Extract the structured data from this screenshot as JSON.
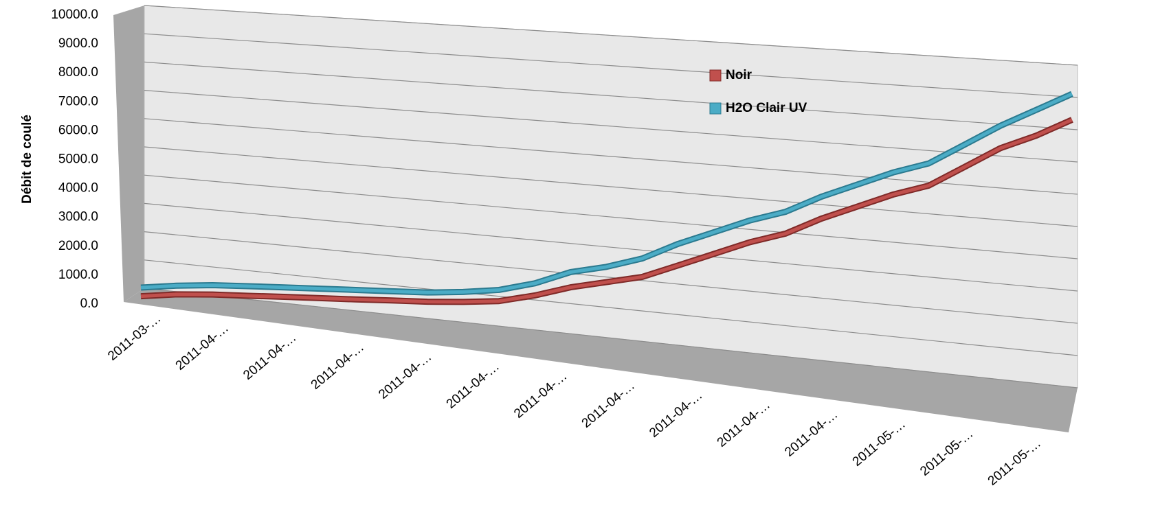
{
  "chart_data": {
    "type": "line",
    "y_label": "Débit de coulé",
    "categories": [
      "2011-03-…",
      null,
      "2011-04-…",
      null,
      "2011-04-…",
      null,
      "2011-04-…",
      null,
      "2011-04-…",
      null,
      "2011-04-…",
      null,
      "2011-04-…",
      null,
      "2011-04-…",
      null,
      "2011-04-…",
      null,
      "2011-04-…",
      null,
      "2011-04-…",
      null,
      "2011-05-…",
      null,
      "2011-05-…",
      null,
      "2011-05-…"
    ],
    "series": [
      {
        "name": "Noir",
        "color": "#c0504d",
        "values": [
          200,
          300,
          330,
          320,
          320,
          310,
          300,
          300,
          290,
          320,
          380,
          600,
          900,
          1100,
          1300,
          1700,
          2100,
          2500,
          2800,
          3300,
          3700,
          4100,
          4400,
          5000,
          5600,
          6000,
          6500
        ]
      },
      {
        "name": "H2O Clair UV",
        "color": "#4bacc6",
        "values": [
          500,
          600,
          650,
          650,
          640,
          630,
          620,
          610,
          600,
          650,
          750,
          1000,
          1400,
          1600,
          1900,
          2400,
          2800,
          3200,
          3500,
          4000,
          4400,
          4800,
          5100,
          5700,
          6300,
          6800,
          7300
        ]
      }
    ],
    "ylim": [
      0,
      10000
    ],
    "yticks": [
      {
        "value": 0,
        "label": "0.0"
      },
      {
        "value": 1000,
        "label": "1000.0"
      },
      {
        "value": 2000,
        "label": "2000.0"
      },
      {
        "value": 3000,
        "label": "3000.0"
      },
      {
        "value": 4000,
        "label": "4000.0"
      },
      {
        "value": 5000,
        "label": "5000.0"
      },
      {
        "value": 6000,
        "label": "6000.0"
      },
      {
        "value": 7000,
        "label": "7000.0"
      },
      {
        "value": 8000,
        "label": "8000.0"
      },
      {
        "value": 9000,
        "label": "9000.0"
      },
      {
        "value": 10000,
        "label": "10000.0"
      }
    ],
    "grid": true
  }
}
